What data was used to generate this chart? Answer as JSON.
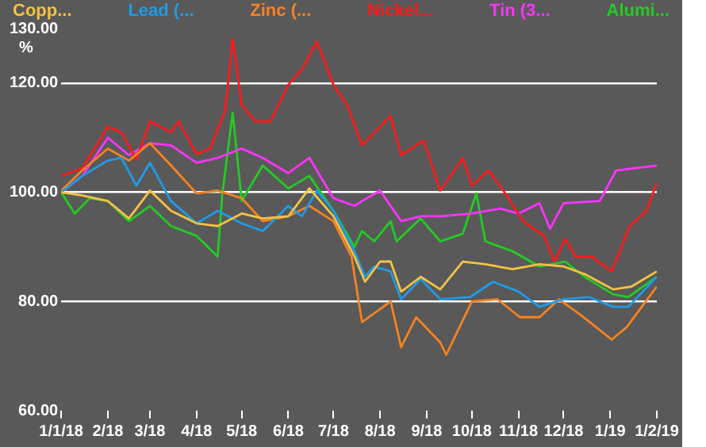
{
  "chart_data": {
    "type": "line",
    "ylabel": "%",
    "legend": "top",
    "grid": "y",
    "marker": "none",
    "line_style": "solid",
    "xlim": [
      "2018-01-01",
      "2019-02-01"
    ],
    "xticks": [
      {
        "value": "2018-01-01",
        "label": "1/1/18"
      },
      {
        "value": "2018-02-01",
        "label": "2/18"
      },
      {
        "value": "2018-03-01",
        "label": "3/18"
      },
      {
        "value": "2018-04-01",
        "label": "4/18"
      },
      {
        "value": "2018-05-01",
        "label": "5/18"
      },
      {
        "value": "2018-06-01",
        "label": "6/18"
      },
      {
        "value": "2018-07-01",
        "label": "7/18"
      },
      {
        "value": "2018-08-01",
        "label": "8/18"
      },
      {
        "value": "2018-09-01",
        "label": "9/18"
      },
      {
        "value": "2018-10-01",
        "label": "10/18"
      },
      {
        "value": "2018-11-01",
        "label": "11/18"
      },
      {
        "value": "2018-12-01",
        "label": "12/18"
      },
      {
        "value": "2019-01-01",
        "label": "1/19"
      },
      {
        "value": "2019-02-01",
        "label": "1/2/19"
      }
    ],
    "ylim": [
      60,
      130
    ],
    "yticks": [
      {
        "value": 60,
        "label": "60.00"
      },
      {
        "value": 80,
        "label": "80.00"
      },
      {
        "value": 100,
        "label": "100.00"
      },
      {
        "value": 120,
        "label": "120.00"
      },
      {
        "value": 130,
        "label": "130.00"
      }
    ],
    "series": [
      {
        "name": "Copp...",
        "color": "#f5c242",
        "x": [
          "2018-01-01",
          "2018-01-15",
          "2018-02-01",
          "2018-02-15",
          "2018-03-01",
          "2018-03-15",
          "2018-04-01",
          "2018-04-15",
          "2018-05-01",
          "2018-05-15",
          "2018-06-01",
          "2018-06-15",
          "2018-07-01",
          "2018-07-15",
          "2018-07-22",
          "2018-08-01",
          "2018-08-08",
          "2018-08-15",
          "2018-08-28",
          "2018-09-10",
          "2018-09-25",
          "2018-10-10",
          "2018-10-28",
          "2018-11-15",
          "2018-12-01",
          "2018-12-15",
          "2019-01-03",
          "2019-01-15",
          "2019-02-01"
        ],
        "values": [
          100,
          99.4,
          98.4,
          95.2,
          100.3,
          96.6,
          94.3,
          93.8,
          96.1,
          95.2,
          95.6,
          100.7,
          95.6,
          88.2,
          83.6,
          87.3,
          87.3,
          81.8,
          84.5,
          82.2,
          87.3,
          86.8,
          85.9,
          86.8,
          86.4,
          85,
          82.2,
          82.7,
          85.5
        ]
      },
      {
        "name": "Lead (...",
        "color": "#1e9be8",
        "x": [
          "2018-01-01",
          "2018-01-15",
          "2018-02-01",
          "2018-02-10",
          "2018-02-20",
          "2018-03-01",
          "2018-03-15",
          "2018-04-01",
          "2018-04-15",
          "2018-05-01",
          "2018-05-15",
          "2018-06-01",
          "2018-06-10",
          "2018-06-20",
          "2018-07-01",
          "2018-07-15",
          "2018-07-22",
          "2018-07-28",
          "2018-08-08",
          "2018-08-15",
          "2018-08-28",
          "2018-09-10",
          "2018-09-30",
          "2018-10-15",
          "2018-11-01",
          "2018-11-15",
          "2018-12-01",
          "2018-12-18",
          "2019-01-03",
          "2019-01-13",
          "2019-02-01"
        ],
        "values": [
          100,
          103,
          105.8,
          106.3,
          101.2,
          105.4,
          98.4,
          94.3,
          96.6,
          94.3,
          92.9,
          97.5,
          95.6,
          100.3,
          96.6,
          89.2,
          84.5,
          86.4,
          85.5,
          80.4,
          84.1,
          80.4,
          80.8,
          83.6,
          81.8,
          79,
          80.4,
          80.8,
          79,
          79,
          84.5
        ]
      },
      {
        "name": "Zinc (...",
        "color": "#f58220",
        "x": [
          "2018-01-01",
          "2018-01-15",
          "2018-02-01",
          "2018-02-15",
          "2018-03-01",
          "2018-03-15",
          "2018-04-01",
          "2018-04-15",
          "2018-05-01",
          "2018-05-15",
          "2018-06-01",
          "2018-06-15",
          "2018-07-01",
          "2018-07-13",
          "2018-07-20",
          "2018-08-08",
          "2018-08-15",
          "2018-08-25",
          "2018-09-10",
          "2018-09-14",
          "2018-10-01",
          "2018-10-18",
          "2018-11-02",
          "2018-11-15",
          "2018-11-28",
          "2018-12-12",
          "2019-01-02",
          "2019-01-12",
          "2019-02-01"
        ],
        "values": [
          100.3,
          104,
          108,
          105.8,
          109,
          104.9,
          99.8,
          100.3,
          98.9,
          94.7,
          95.6,
          97.5,
          94.7,
          88.2,
          76.2,
          80,
          71.6,
          77.1,
          72.5,
          70.2,
          80,
          80.4,
          77.1,
          77.1,
          80.4,
          77.6,
          73,
          75.3,
          82.7
        ]
      },
      {
        "name": "Nickel...",
        "color": "#ff1a1a",
        "x": [
          "2018-01-01",
          "2018-01-15",
          "2018-02-01",
          "2018-02-10",
          "2018-02-20",
          "2018-03-01",
          "2018-03-15",
          "2018-03-20",
          "2018-04-01",
          "2018-04-10",
          "2018-04-20",
          "2018-04-25",
          "2018-05-01",
          "2018-05-10",
          "2018-05-20",
          "2018-06-01",
          "2018-06-10",
          "2018-06-20",
          "2018-07-01",
          "2018-07-10",
          "2018-07-20",
          "2018-08-08",
          "2018-08-15",
          "2018-08-30",
          "2018-09-10",
          "2018-09-25",
          "2018-10-01",
          "2018-10-12",
          "2018-10-22",
          "2018-11-04",
          "2018-11-18",
          "2018-11-25",
          "2018-12-02",
          "2018-12-09",
          "2018-12-20",
          "2019-01-02",
          "2019-01-14",
          "2019-01-25",
          "2019-02-01"
        ],
        "values": [
          103,
          104.4,
          112,
          111,
          106,
          113,
          111,
          113,
          107,
          108,
          115,
          128,
          116,
          113,
          113,
          119.7,
          122.5,
          127.6,
          119.7,
          116,
          108.6,
          114,
          106.8,
          109.5,
          100.3,
          106.3,
          101.2,
          104,
          100.3,
          94.7,
          92,
          87.3,
          91.5,
          88.2,
          88.2,
          85.5,
          93.8,
          96.6,
          101.7
        ]
      },
      {
        "name": "Tin (3...",
        "color": "#ff33ff",
        "x": [
          "2018-01-01",
          "2018-01-15",
          "2018-02-01",
          "2018-02-15",
          "2018-03-01",
          "2018-03-15",
          "2018-04-01",
          "2018-04-15",
          "2018-05-01",
          "2018-05-15",
          "2018-06-01",
          "2018-06-15",
          "2018-07-01",
          "2018-07-15",
          "2018-07-20",
          "2018-08-01",
          "2018-08-15",
          "2018-08-28",
          "2018-09-10",
          "2018-10-01",
          "2018-10-20",
          "2018-11-01",
          "2018-11-15",
          "2018-11-22",
          "2018-12-01",
          "2018-12-25",
          "2019-01-05",
          "2019-02-01"
        ],
        "values": [
          100,
          103,
          110,
          106.8,
          109,
          108.6,
          105.4,
          106.3,
          108,
          106.3,
          103.5,
          106.3,
          98.9,
          97.5,
          98.4,
          100.3,
          94.7,
          95.6,
          95.6,
          96.1,
          97,
          96.1,
          98,
          93.3,
          98,
          98.4,
          104,
          104.9
        ]
      },
      {
        "name": "Alumi...",
        "color": "#22cc22",
        "x": [
          "2018-01-01",
          "2018-01-10",
          "2018-01-20",
          "2018-02-01",
          "2018-02-15",
          "2018-03-01",
          "2018-03-15",
          "2018-04-01",
          "2018-04-15",
          "2018-04-18",
          "2018-04-25",
          "2018-05-01",
          "2018-05-15",
          "2018-06-01",
          "2018-06-15",
          "2018-07-01",
          "2018-07-15",
          "2018-07-20",
          "2018-07-28",
          "2018-08-08",
          "2018-08-12",
          "2018-08-28",
          "2018-09-10",
          "2018-09-25",
          "2018-10-04",
          "2018-10-10",
          "2018-10-28",
          "2018-11-15",
          "2018-12-02",
          "2018-12-15",
          "2019-01-03",
          "2019-01-13",
          "2019-02-01"
        ],
        "values": [
          100,
          96.1,
          98.9,
          98.4,
          94.7,
          97.5,
          93.8,
          92,
          88.2,
          99.4,
          114.6,
          98.4,
          104.9,
          100.7,
          103,
          96.6,
          90,
          92.9,
          91,
          94.7,
          91,
          95.2,
          91,
          92.4,
          99.8,
          91,
          89.2,
          86.4,
          87.3,
          84.5,
          81.3,
          80.8,
          84.5
        ]
      }
    ]
  }
}
